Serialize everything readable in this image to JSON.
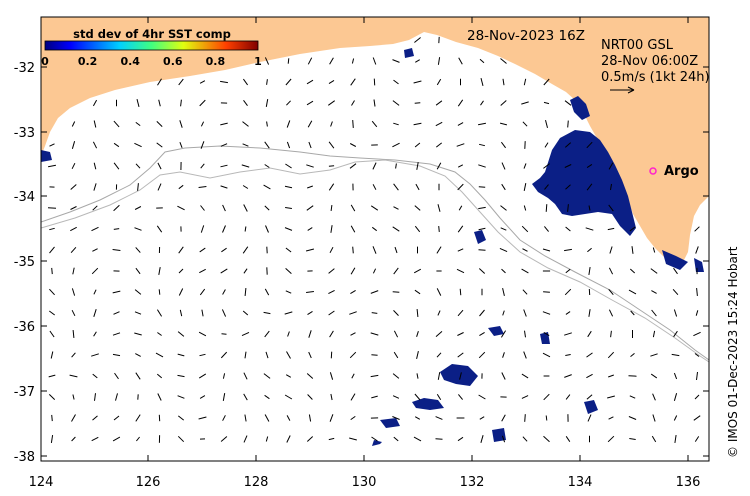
{
  "map": {
    "date_label": "28-Nov-2023 16Z",
    "product_label": "NRT00 GSL",
    "time_label": "28-Nov 06:00Z",
    "scale_label": "0.5m/s (1kt 24h)",
    "marker_label": "Argo",
    "copyright": "© IMOS 01-Dec-2023 15:24 Hobart",
    "colorbar": {
      "title": "std dev of 4hr SST comp",
      "ticks": [
        "0",
        "0.2",
        "0.4",
        "0.6",
        "0.8",
        "1"
      ]
    },
    "x_ticks": [
      "124",
      "126",
      "128",
      "130",
      "132",
      "134",
      "136"
    ],
    "y_ticks": [
      "-32",
      "-33",
      "-34",
      "-35",
      "-36",
      "-37",
      "-38"
    ],
    "colors": {
      "land": "#fcc893",
      "sst_patch": "#0b1f86",
      "bathymetry": "#a8a8a8",
      "marker": "#ff22cc"
    }
  }
}
